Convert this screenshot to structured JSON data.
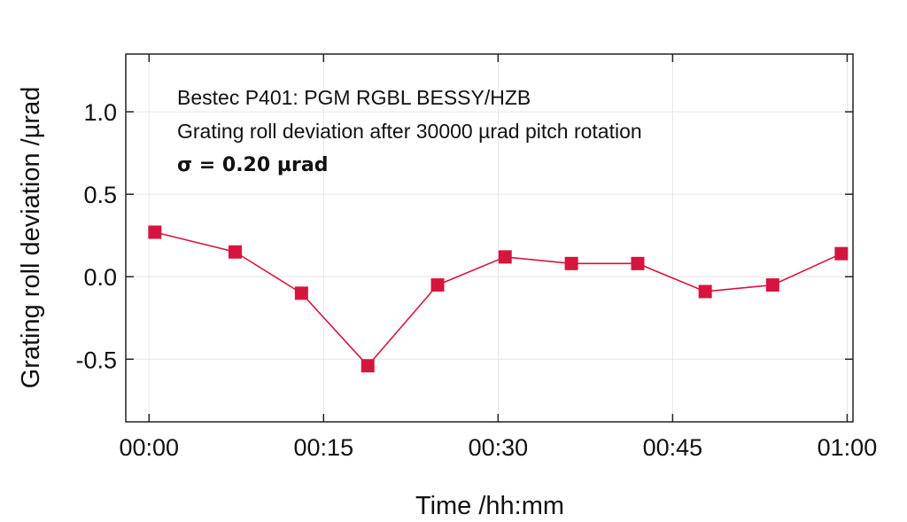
{
  "chart_data": {
    "type": "line",
    "xlabel": "Time /hh:mm",
    "ylabel": "Grating roll deviation /µrad",
    "xlim": [
      -2,
      60.5
    ],
    "ylim": [
      -0.88,
      1.35
    ],
    "x_ticks": [
      {
        "value": 0,
        "label": "00:00"
      },
      {
        "value": 15,
        "label": "00:15"
      },
      {
        "value": 30,
        "label": "00:30"
      },
      {
        "value": 45,
        "label": "00:45"
      },
      {
        "value": 60,
        "label": "01:00"
      }
    ],
    "y_ticks": [
      {
        "value": 1.0,
        "label": "1.0"
      },
      {
        "value": 0.5,
        "label": "0.5"
      },
      {
        "value": 0.0,
        "label": "0.0"
      },
      {
        "value": -0.5,
        "label": "-0.5"
      }
    ],
    "grid": true,
    "annotations": [
      "Bestec P401: PGM RGBL BESSY/HZB",
      "Grating roll deviation after 30000 µrad pitch rotation",
      "σ = 0.20 µrad"
    ],
    "series": [
      {
        "color": "#d6153f",
        "marker": "square",
        "x": [
          "00:01",
          "00:07",
          "00:13",
          "00:19",
          "00:25",
          "00:31",
          "00:37",
          "00:42",
          "00:48",
          "00:54",
          "00:60"
        ],
        "x_minutes": [
          0.5,
          7.4,
          13.1,
          18.8,
          24.8,
          30.6,
          36.3,
          42.0,
          47.8,
          53.6,
          59.5
        ],
        "values": [
          0.27,
          0.15,
          -0.1,
          -0.54,
          -0.05,
          0.12,
          0.08,
          0.08,
          -0.09,
          -0.05,
          0.14
        ]
      }
    ]
  }
}
